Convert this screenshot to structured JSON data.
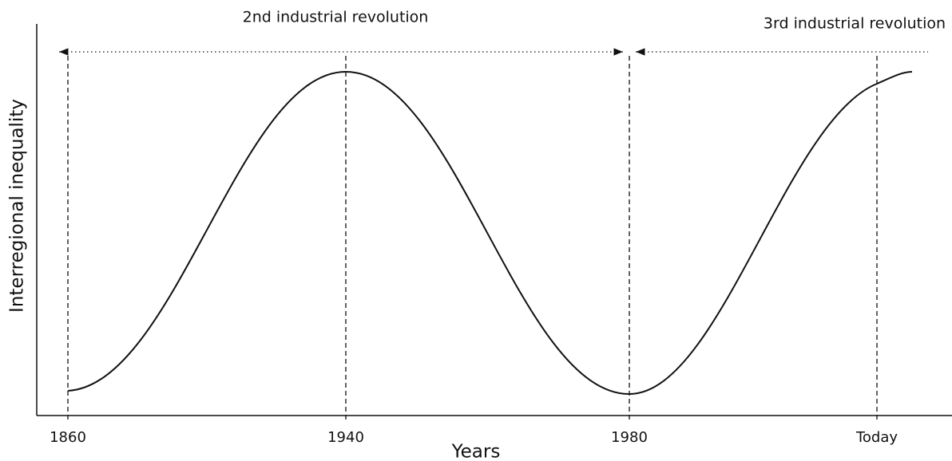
{
  "annotations": {
    "left_period": "2nd industrial revolution",
    "right_period": "3rd industrial revolution"
  },
  "axes": {
    "x_label": "Years",
    "y_label": "Interregional inequality"
  },
  "x_ticks": [
    "1860",
    "1940",
    "1980",
    "Today"
  ]
}
